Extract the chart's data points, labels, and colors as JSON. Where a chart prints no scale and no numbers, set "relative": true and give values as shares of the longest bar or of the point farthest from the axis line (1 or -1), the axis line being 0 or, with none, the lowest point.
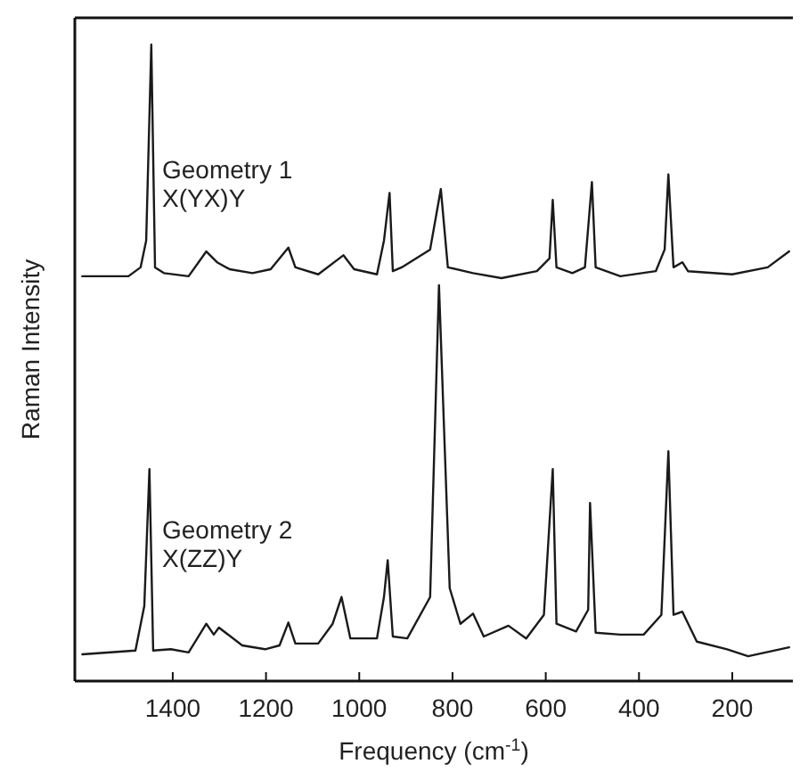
{
  "chart_data": {
    "type": "line",
    "relative": true,
    "xlabel": "Frequency (cm$^{-1}$)",
    "ylabel": "Raman Intensity",
    "xlim": [
      1610,
      70
    ],
    "xticks": [
      1400,
      1200,
      1000,
      800,
      600,
      400,
      200
    ],
    "grid": false,
    "marker": "none",
    "line_style": "solid",
    "series": [
      {
        "name": "Geometry 1\nX(YX)Y",
        "color": "#1a1a1a",
        "x": [
          1594,
          1495,
          1469,
          1457,
          1446,
          1438,
          1419,
          1366,
          1328,
          1305,
          1278,
          1229,
          1190,
          1152,
          1137,
          1088,
          1034,
          1011,
          962,
          947,
          935,
          928,
          909,
          848,
          825,
          810,
          756,
          695,
          619,
          592,
          585,
          577,
          543,
          516,
          501,
          493,
          440,
          364,
          345,
          337,
          326,
          307,
          295,
          200,
          124,
          78
        ],
        "values": [
          0.636,
          0.636,
          0.65,
          0.692,
          1,
          0.65,
          0.641,
          0.636,
          0.675,
          0.658,
          0.647,
          0.641,
          0.647,
          0.681,
          0.65,
          0.639,
          0.669,
          0.647,
          0.639,
          0.692,
          0.767,
          0.644,
          0.65,
          0.678,
          0.773,
          0.65,
          0.641,
          0.633,
          0.644,
          0.664,
          0.756,
          0.65,
          0.641,
          0.65,
          0.784,
          0.65,
          0.636,
          0.644,
          0.678,
          0.796,
          0.65,
          0.658,
          0.644,
          0.639,
          0.65,
          0.675
        ]
      },
      {
        "name": "Geometry 2\nX(ZZ)Y",
        "color": "#1a1a1a",
        "x": [
          1594,
          1480,
          1461,
          1450,
          1442,
          1404,
          1366,
          1328,
          1312,
          1301,
          1251,
          1202,
          1171,
          1152,
          1137,
          1088,
          1057,
          1038,
          1019,
          962,
          947,
          939,
          928,
          897,
          848,
          829,
          806,
          783,
          756,
          733,
          680,
          642,
          604,
          585,
          577,
          535,
          509,
          505,
          493,
          440,
          390,
          352,
          337,
          326,
          307,
          276,
          211,
          166,
          78
        ],
        "values": [
          0.042,
          0.048,
          0.118,
          0.333,
          0.048,
          0.05,
          0.045,
          0.09,
          0.073,
          0.084,
          0.056,
          0.05,
          0.056,
          0.092,
          0.059,
          0.059,
          0.09,
          0.132,
          0.067,
          0.067,
          0.132,
          0.19,
          0.07,
          0.067,
          0.132,
          0.622,
          0.146,
          0.09,
          0.106,
          0.07,
          0.087,
          0.067,
          0.104,
          0.333,
          0.09,
          0.078,
          0.112,
          0.28,
          0.076,
          0.073,
          0.073,
          0.104,
          0.361,
          0.104,
          0.109,
          0.062,
          0.05,
          0.039,
          0.053
        ]
      }
    ]
  }
}
